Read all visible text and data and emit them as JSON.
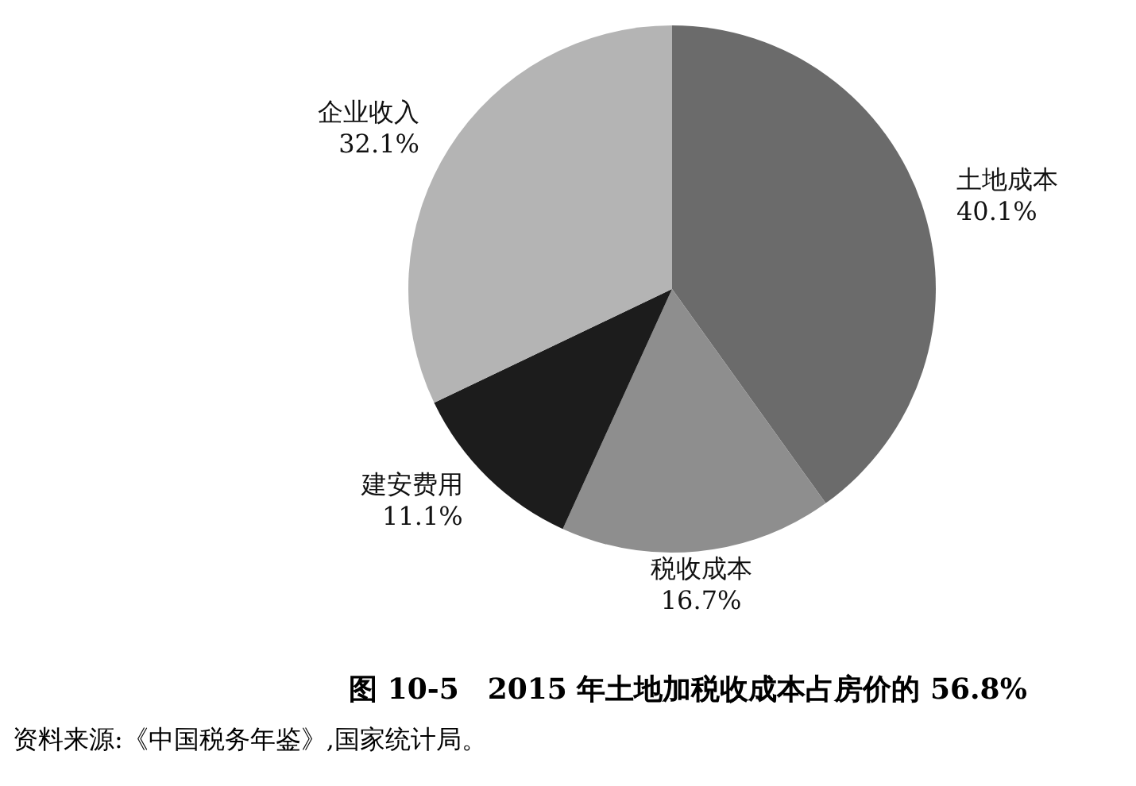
{
  "chart_data": {
    "type": "pie",
    "title": "图 10-5　2015 年土地加税收成本占房价的 56.8%",
    "categories": [
      "土地成本",
      "税收成本",
      "建安费用",
      "企业收入"
    ],
    "values": [
      40.1,
      16.7,
      11.1,
      32.1
    ],
    "colors": [
      "#6b6b6b",
      "#8e8e8e",
      "#1c1c1c",
      "#b4b4b4"
    ],
    "value_labels": [
      "40.1%",
      "16.7%",
      "11.1%",
      "32.1%"
    ],
    "legend": false,
    "annotations": [
      "资料来源:《中国税务年鉴》,国家统计局。"
    ]
  }
}
